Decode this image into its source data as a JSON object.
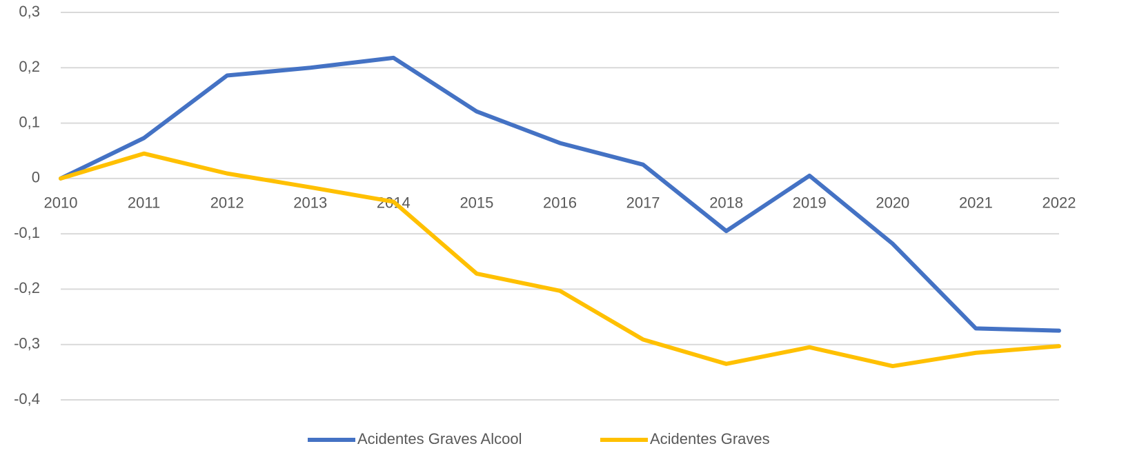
{
  "chart_data": {
    "type": "line",
    "categories": [
      "2010",
      "2011",
      "2012",
      "2013",
      "2014",
      "2015",
      "2016",
      "2017",
      "2018",
      "2019",
      "2020",
      "2021",
      "2022"
    ],
    "series": [
      {
        "name": "Acidentes Graves Alcool",
        "color": "#4472c4",
        "values": [
          0,
          0.073,
          0.186,
          0.2,
          0.218,
          0.121,
          0.064,
          0.025,
          -0.095,
          0.005,
          -0.118,
          -0.271,
          -0.275
        ]
      },
      {
        "name": "Acidentes Graves",
        "color": "#ffc000",
        "values": [
          0,
          0.045,
          0.009,
          -0.016,
          -0.042,
          -0.172,
          -0.203,
          -0.291,
          -0.335,
          -0.305,
          -0.339,
          -0.315,
          -0.303
        ]
      }
    ],
    "ylim": [
      -0.4,
      0.3
    ],
    "yticks": [
      {
        "value": -0.4,
        "label": "-0,4"
      },
      {
        "value": -0.3,
        "label": "-0,3"
      },
      {
        "value": -0.2,
        "label": "-0,2"
      },
      {
        "value": -0.1,
        "label": "-0,1"
      },
      0,
      {
        "value": 0.1,
        "label": "0,1"
      },
      {
        "value": 0.2,
        "label": "0,2"
      },
      {
        "value": 0.3,
        "label": "0,3"
      }
    ],
    "grid": true,
    "legend": "bottom"
  }
}
